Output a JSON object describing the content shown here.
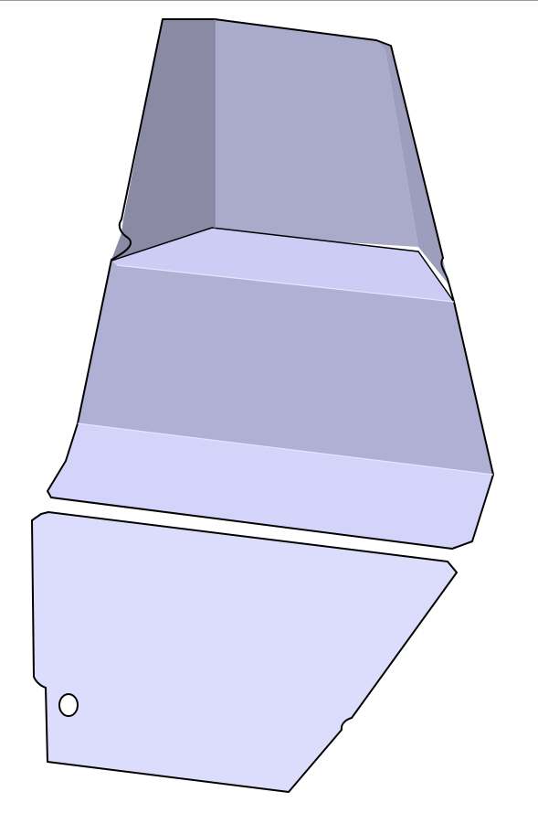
{
  "scene": {
    "background": "#ffffff",
    "outline_color": "#000000",
    "top_rule_color": "#9a9a9a",
    "parts": [
      {
        "name": "upper-bent-panel",
        "faces": [
          {
            "name": "upper-panel-left-face",
            "color": "#8a8aa5"
          },
          {
            "name": "upper-panel-back-face",
            "color": "#aaaacb"
          },
          {
            "name": "upper-panel-right-bevel",
            "color": "#9d9dbe"
          },
          {
            "name": "upper-panel-top-slope",
            "color": "#ccccf5"
          },
          {
            "name": "upper-panel-middle-face",
            "color": "#b0b0d5"
          },
          {
            "name": "upper-panel-lower-face",
            "color": "#d4d4fb"
          }
        ]
      },
      {
        "name": "lower-flat-panel",
        "faces": [
          {
            "name": "lower-panel-face",
            "color": "#dcdcfc"
          }
        ],
        "holes": 1
      }
    ]
  }
}
